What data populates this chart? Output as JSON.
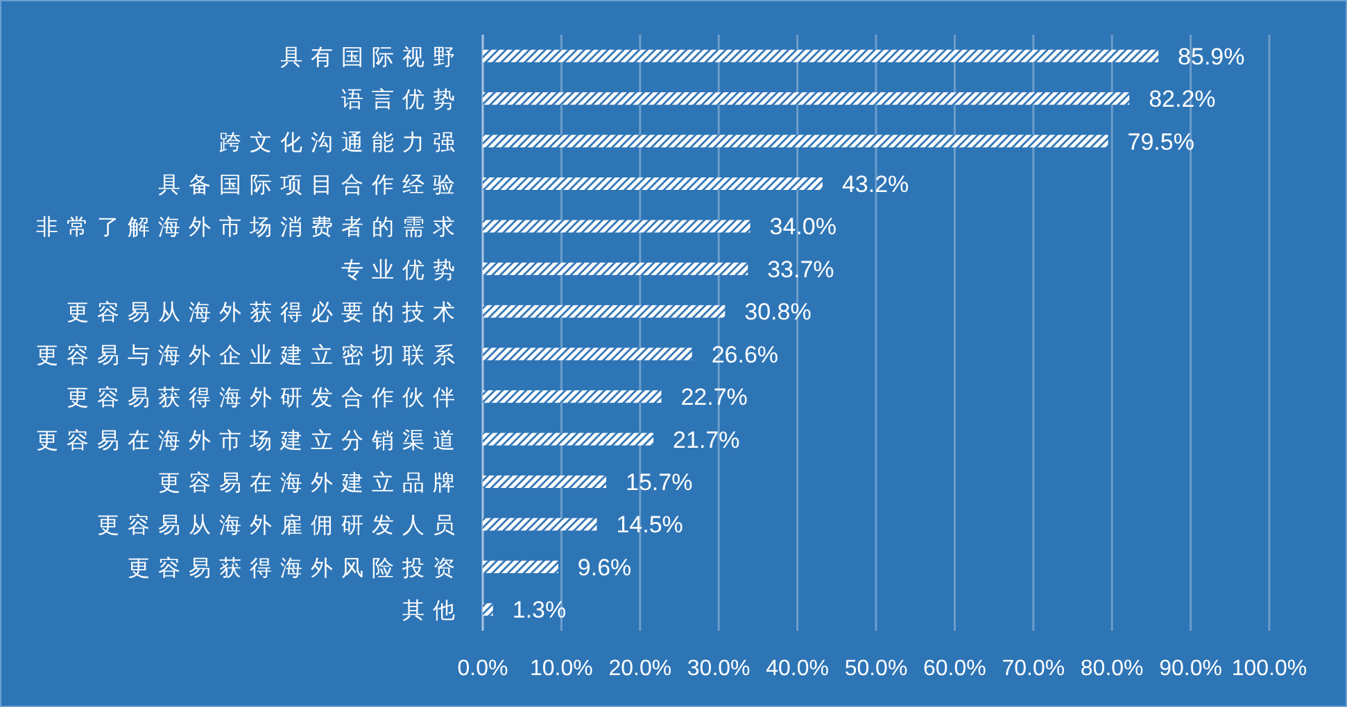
{
  "chart_data": {
    "type": "bar",
    "orientation": "horizontal",
    "categories": [
      "具有国际视野",
      "语言优势",
      "跨文化沟通能力强",
      "具备国际项目合作经验",
      "非常了解海外市场消费者的需求",
      "专业优势",
      "更容易从海外获得必要的技术",
      "更容易与海外企业建立密切联系",
      "更容易获得海外研发合作伙伴",
      "更容易在海外市场建立分销渠道",
      "更容易在海外建立品牌",
      "更容易从海外雇佣研发人员",
      "更容易获得海外风险投资",
      "其他"
    ],
    "values": [
      85.9,
      82.2,
      79.5,
      43.2,
      34.0,
      33.7,
      30.8,
      26.6,
      22.7,
      21.7,
      15.7,
      14.5,
      9.6,
      1.3
    ],
    "value_labels": [
      "85.9%",
      "82.2%",
      "79.5%",
      "43.2%",
      "34.0%",
      "33.7%",
      "30.8%",
      "26.6%",
      "22.7%",
      "21.7%",
      "15.7%",
      "14.5%",
      "9.6%",
      "1.3%"
    ],
    "color": "#ffffff",
    "xlim": [
      0,
      100
    ],
    "xticks": [
      {
        "value": 0,
        "label": "0.0%"
      },
      {
        "value": 10,
        "label": "10.0%"
      },
      {
        "value": 20,
        "label": "20.0%"
      },
      {
        "value": 30,
        "label": "30.0%"
      },
      {
        "value": 40,
        "label": "40.0%"
      },
      {
        "value": 50,
        "label": "50.0%"
      },
      {
        "value": 60,
        "label": "60.0%"
      },
      {
        "value": 70,
        "label": "70.0%"
      },
      {
        "value": 80,
        "label": "80.0%"
      },
      {
        "value": 90,
        "label": "90.0%"
      },
      {
        "value": 100,
        "label": "100.0%"
      }
    ],
    "grid": "x"
  }
}
